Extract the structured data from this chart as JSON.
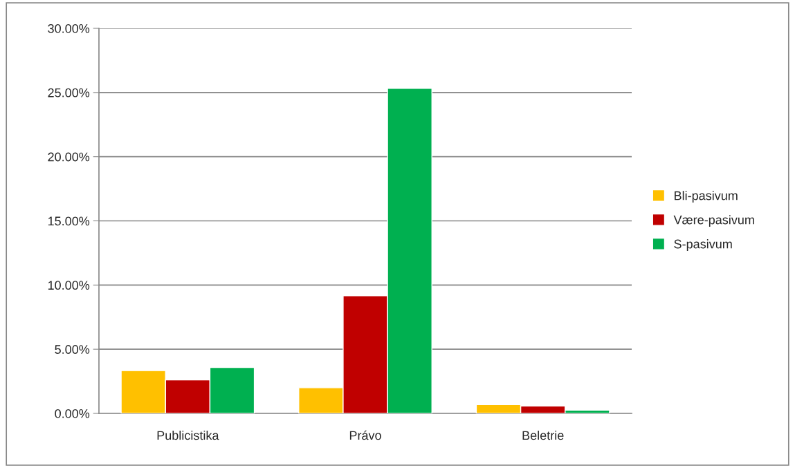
{
  "chart_data": {
    "type": "bar",
    "categories": [
      "Publicistika",
      "Právo",
      "Beletrie"
    ],
    "series": [
      {
        "name": "Bli-pasivum",
        "color": "#ffc000",
        "values": [
          3.33,
          2.0,
          0.69
        ]
      },
      {
        "name": "Være-pasivum",
        "color": "#c00000",
        "values": [
          2.61,
          9.17,
          0.58
        ]
      },
      {
        "name": "S-pasivum",
        "color": "#00b050",
        "values": [
          3.58,
          25.32,
          0.25
        ]
      }
    ],
    "ylim": [
      0,
      30
    ],
    "yticks": [
      {
        "value": 0,
        "label": "0.00%"
      },
      {
        "value": 5,
        "label": "5.00%"
      },
      {
        "value": 10,
        "label": "10.00%"
      },
      {
        "value": 15,
        "label": "15.00%"
      },
      {
        "value": 20,
        "label": "20.00%"
      },
      {
        "value": 25,
        "label": "25.00%"
      },
      {
        "value": 30,
        "label": "30.00%"
      }
    ],
    "grid": "y",
    "legend": "right"
  }
}
